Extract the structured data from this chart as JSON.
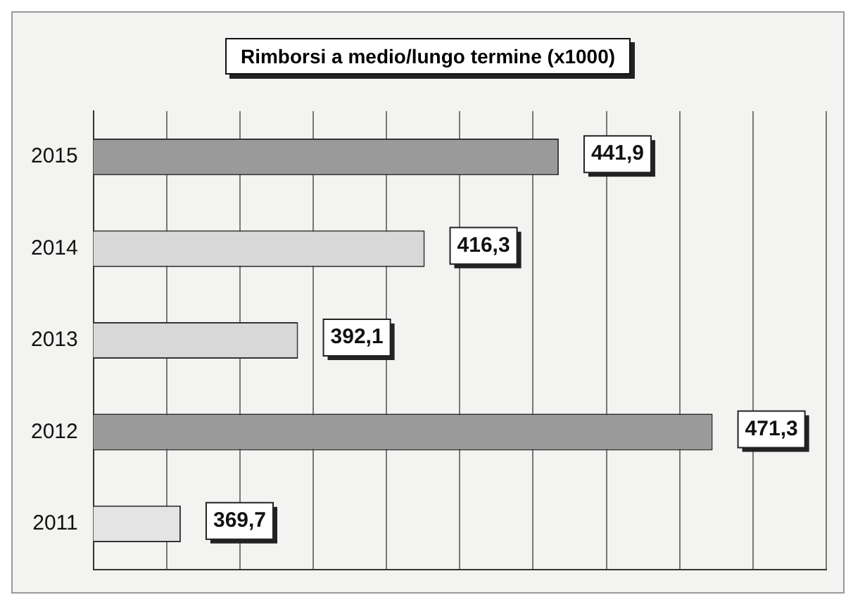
{
  "chart_data": {
    "type": "bar",
    "orientation": "horizontal",
    "title": "Rimborsi a medio/lungo termine (x1000)",
    "categories": [
      "2015",
      "2014",
      "2013",
      "2012",
      "2011"
    ],
    "values": [
      441.9,
      416.3,
      392.1,
      471.3,
      369.7
    ],
    "colors": [
      "#9a9a9a",
      "#d8d8d8",
      "#d8d8d8",
      "#9a9a9a",
      "#e4e4e4"
    ],
    "value_labels": [
      "441,9",
      "416,3",
      "392,1",
      "471,3",
      "369,7"
    ],
    "xlim": [
      353,
      493
    ],
    "xticks": [
      {
        "value": 353,
        "label": null
      },
      {
        "value": 367,
        "label": null
      },
      {
        "value": 381,
        "label": null
      },
      {
        "value": 395,
        "label": null
      },
      {
        "value": 409,
        "label": null
      },
      {
        "value": 423,
        "label": null
      },
      {
        "value": 437,
        "label": null
      },
      {
        "value": 451,
        "label": null
      },
      {
        "value": 465,
        "label": null
      },
      {
        "value": 479,
        "label": null
      },
      {
        "value": 493,
        "label": null
      }
    ],
    "grid": "x",
    "tick_labels": "y"
  }
}
